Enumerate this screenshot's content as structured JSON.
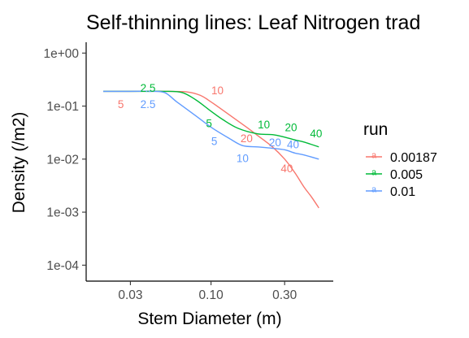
{
  "chart_data": {
    "type": "line",
    "title": "Self-thinning lines: Leaf Nitrogen trad",
    "xlabel": "Stem Diameter (m)",
    "ylabel": "Density (/m2)",
    "x_scale": "log10",
    "y_scale": "log10",
    "xlim": [
      0.0155,
      0.62
    ],
    "ylim": [
      5e-05,
      1.6
    ],
    "x_ticks": [
      {
        "value": 0.03,
        "label": "0.03"
      },
      {
        "value": 0.1,
        "label": "0.10"
      },
      {
        "value": 0.3,
        "label": "0.30"
      }
    ],
    "y_ticks": [
      {
        "value": 1,
        "label": "1e+00"
      },
      {
        "value": 0.1,
        "label": "1e-01"
      },
      {
        "value": 0.01,
        "label": "1e-02"
      },
      {
        "value": 0.001,
        "label": "1e-03"
      },
      {
        "value": 0.0001,
        "label": "1e-04"
      }
    ],
    "grid": false,
    "legend": {
      "title": "run",
      "placement": "right",
      "key_glyph": "a"
    },
    "series": [
      {
        "name": "0.00187",
        "color": "#F8766D",
        "x": [
          0.02,
          0.03,
          0.05,
          0.07,
          0.085,
          0.1,
          0.13,
          0.17,
          0.2,
          0.25,
          0.3,
          0.35,
          0.4,
          0.45,
          0.5
        ],
        "y": [
          0.19,
          0.19,
          0.19,
          0.185,
          0.16,
          0.12,
          0.07,
          0.04,
          0.028,
          0.017,
          0.01,
          0.0055,
          0.003,
          0.0019,
          0.0012
        ]
      },
      {
        "name": "0.005",
        "color": "#00BA38",
        "x": [
          0.02,
          0.03,
          0.04,
          0.05,
          0.065,
          0.08,
          0.1,
          0.12,
          0.15,
          0.2,
          0.25,
          0.3,
          0.35,
          0.4,
          0.5
        ],
        "y": [
          0.19,
          0.19,
          0.19,
          0.19,
          0.18,
          0.13,
          0.08,
          0.055,
          0.038,
          0.03,
          0.029,
          0.026,
          0.023,
          0.021,
          0.017
        ]
      },
      {
        "name": "0.01",
        "color": "#619CFF",
        "x": [
          0.02,
          0.03,
          0.04,
          0.05,
          0.06,
          0.08,
          0.1,
          0.13,
          0.16,
          0.2,
          0.25,
          0.3,
          0.35,
          0.4,
          0.5
        ],
        "y": [
          0.19,
          0.19,
          0.19,
          0.18,
          0.12,
          0.065,
          0.04,
          0.025,
          0.018,
          0.017,
          0.016,
          0.015,
          0.013,
          0.012,
          0.01
        ]
      }
    ],
    "annotations": [
      {
        "text": "5",
        "series": "0.00187",
        "x": 0.026,
        "y": 0.11
      },
      {
        "text": "10",
        "series": "0.00187",
        "x": 0.11,
        "y": 0.2
      },
      {
        "text": "20",
        "series": "0.00187",
        "x": 0.17,
        "y": 0.025
      },
      {
        "text": "40",
        "series": "0.00187",
        "x": 0.31,
        "y": 0.0068
      },
      {
        "text": "2.5",
        "series": "0.005",
        "x": 0.039,
        "y": 0.22
      },
      {
        "text": "5",
        "series": "0.005",
        "x": 0.097,
        "y": 0.048
      },
      {
        "text": "10",
        "series": "0.005",
        "x": 0.22,
        "y": 0.045
      },
      {
        "text": "20",
        "series": "0.005",
        "x": 0.33,
        "y": 0.04
      },
      {
        "text": "40",
        "series": "0.005",
        "x": 0.48,
        "y": 0.031
      },
      {
        "text": "2.5",
        "series": "0.01",
        "x": 0.039,
        "y": 0.11
      },
      {
        "text": "5",
        "series": "0.01",
        "x": 0.105,
        "y": 0.022
      },
      {
        "text": "10",
        "series": "0.01",
        "x": 0.16,
        "y": 0.0105
      },
      {
        "text": "20",
        "series": "0.01",
        "x": 0.26,
        "y": 0.021
      },
      {
        "text": "40",
        "series": "0.01",
        "x": 0.34,
        "y": 0.019
      }
    ]
  }
}
